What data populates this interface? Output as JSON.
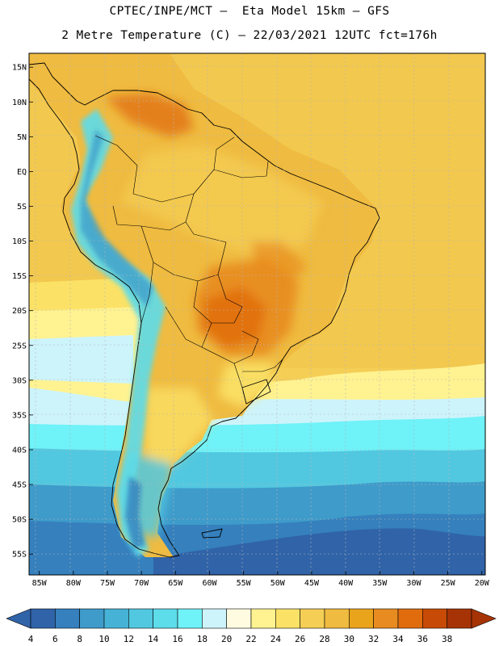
{
  "header": {
    "line1": "CPTEC/INPE/MCT –  Eta Model 15km – GFS",
    "line2": "2 Metre Temperature (C) – 22/03/2021 12UTC fct=176h"
  },
  "map": {
    "lat_labels": [
      "15N",
      "10N",
      "5N",
      "EQ",
      "5S",
      "10S",
      "15S",
      "20S",
      "25S",
      "30S",
      "35S",
      "40S",
      "45S",
      "50S",
      "55S"
    ],
    "lon_labels": [
      "85W",
      "80W",
      "75W",
      "70W",
      "65W",
      "60W",
      "55W",
      "50W",
      "45W",
      "40W",
      "35W",
      "30W",
      "25W",
      "20W"
    ],
    "extent": {
      "lon_min": -86.5,
      "lon_max": -19.5,
      "lat_min": -58,
      "lat_max": 17
    }
  },
  "colorbar": {
    "labels": [
      "4",
      "6",
      "8",
      "10",
      "12",
      "14",
      "16",
      "18",
      "20",
      "22",
      "24",
      "26",
      "28",
      "30",
      "32",
      "34",
      "36",
      "38"
    ],
    "colors": [
      "#3063a8",
      "#3580bd",
      "#3e9bca",
      "#46b3d6",
      "#52c8e0",
      "#5ddcea",
      "#6ff2f8",
      "#cdf4fb",
      "#fffbe0",
      "#fff291",
      "#fbe267",
      "#f5ce55",
      "#efbb40",
      "#eaa41c",
      "#e88b20",
      "#e06c0e",
      "#c74b07",
      "#a63306"
    ]
  },
  "colors": {
    "border": "#000000",
    "grid": "#b5b5b5",
    "land_base": "#efbb40"
  }
}
